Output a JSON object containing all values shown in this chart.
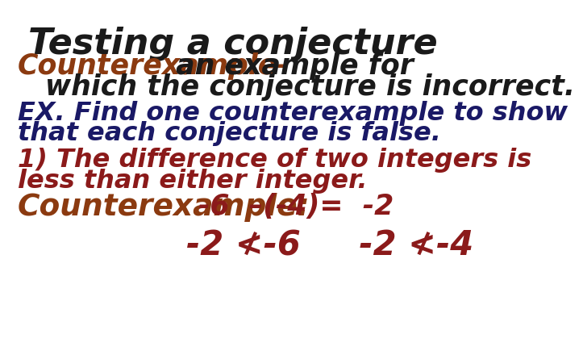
{
  "bg_color": "#ffffff",
  "title": "Testing a conjecture",
  "title_color": "#1a1a1a",
  "title_fontsize": 32,
  "line2_part1": "Counterexample-",
  "line2_part1_color": "#8B3A10",
  "line2_part2": " an example for",
  "line2_part2_color": "#1a1a1a",
  "line3": "which the conjecture is incorrect.",
  "line3_color": "#1a1a1a",
  "line4": "EX. Find one counterexample to show",
  "line4_color": "#1a1966",
  "line5": "that each conjecture is false.",
  "line5_color": "#1a1966",
  "line6": "1) The difference of two integers is",
  "line6_color": "#8B1A1A",
  "line7": "less than either integer.",
  "line7_color": "#8B1A1A",
  "line8_part1": "Counterexample:",
  "line8_part1_color": "#8B3A10",
  "line8_part2": "-6  –(-4)=  -2",
  "line8_part2_color": "#8B1A1A",
  "line9_color": "#8B1A1A",
  "body_fontsize": 22,
  "ce_fontsize": 24
}
